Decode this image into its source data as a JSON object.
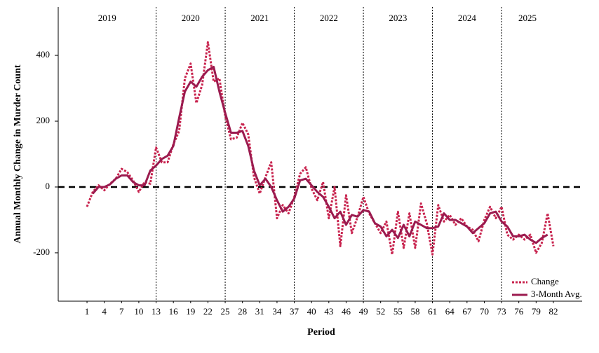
{
  "chart_data": {
    "type": "line",
    "x_label": "Period",
    "y_label": "Annual Monthly Change in Murder Count",
    "x": [
      1,
      2,
      3,
      4,
      5,
      6,
      7,
      8,
      9,
      10,
      11,
      12,
      13,
      14,
      15,
      16,
      17,
      18,
      19,
      20,
      21,
      22,
      23,
      24,
      25,
      26,
      27,
      28,
      29,
      30,
      31,
      32,
      33,
      34,
      35,
      36,
      37,
      38,
      39,
      40,
      41,
      42,
      43,
      44,
      45,
      46,
      47,
      48,
      49,
      50,
      51,
      52,
      53,
      54,
      55,
      56,
      57,
      58,
      59,
      60,
      61,
      62,
      63,
      64,
      65,
      66,
      67,
      68,
      69,
      70,
      71,
      72,
      73,
      74,
      75,
      76,
      77,
      78,
      79,
      80,
      81,
      82
    ],
    "series": [
      {
        "name": "Change",
        "color": "#c8234e",
        "style": "dotted",
        "values": [
          -60,
          -15,
          5,
          -10,
          10,
          25,
          55,
          45,
          20,
          -15,
          15,
          10,
          120,
          75,
          75,
          130,
          170,
          330,
          375,
          255,
          310,
          440,
          320,
          330,
          215,
          145,
          150,
          195,
          160,
          30,
          -20,
          30,
          75,
          -95,
          -55,
          -80,
          -30,
          40,
          60,
          -5,
          -40,
          15,
          -95,
          0,
          -180,
          -25,
          -140,
          -90,
          -30,
          -80,
          -110,
          -140,
          -105,
          -205,
          -75,
          -185,
          -80,
          -185,
          -50,
          -110,
          -205,
          -55,
          -105,
          -85,
          -115,
          -95,
          -120,
          -130,
          -165,
          -100,
          -60,
          -95,
          -60,
          -145,
          -160,
          -145,
          -160,
          -145,
          -200,
          -170,
          -80,
          -180
        ]
      },
      {
        "name": "3-Month Avg.",
        "color": "#9b1b4f",
        "style": "solid",
        "values": [
          null,
          -20,
          0,
          0,
          8,
          25,
          35,
          35,
          15,
          5,
          5,
          50,
          65,
          85,
          95,
          125,
          210,
          290,
          320,
          305,
          335,
          355,
          365,
          290,
          225,
          165,
          165,
          170,
          125,
          50,
          5,
          25,
          0,
          -40,
          -75,
          -60,
          -35,
          20,
          25,
          5,
          -15,
          -30,
          -60,
          -95,
          -75,
          -115,
          -85,
          -90,
          -70,
          -75,
          -110,
          -120,
          -150,
          -130,
          -155,
          -115,
          -150,
          -105,
          -115,
          -125,
          -125,
          -120,
          -80,
          -100,
          -100,
          -110,
          -120,
          -140,
          -125,
          -110,
          -80,
          -75,
          -105,
          -120,
          -150,
          -150,
          -145,
          -160,
          -170,
          -155,
          -145,
          null
        ]
      }
    ],
    "xlim": [
      -4,
      87
    ],
    "ylim": [
      -347,
      547
    ],
    "xticks": [
      1,
      4,
      7,
      10,
      13,
      16,
      19,
      22,
      25,
      28,
      31,
      34,
      37,
      40,
      43,
      46,
      49,
      52,
      55,
      58,
      61,
      64,
      67,
      70,
      73,
      76,
      79,
      82
    ],
    "yticks": [
      -200,
      0,
      200,
      400
    ],
    "reference_line": 0,
    "years": [
      "2019",
      "2020",
      "2021",
      "2022",
      "2023",
      "2024",
      "2025"
    ],
    "year_boundaries": [
      13,
      25,
      37,
      49,
      61,
      73
    ],
    "legend": "lower right",
    "grid": false
  }
}
